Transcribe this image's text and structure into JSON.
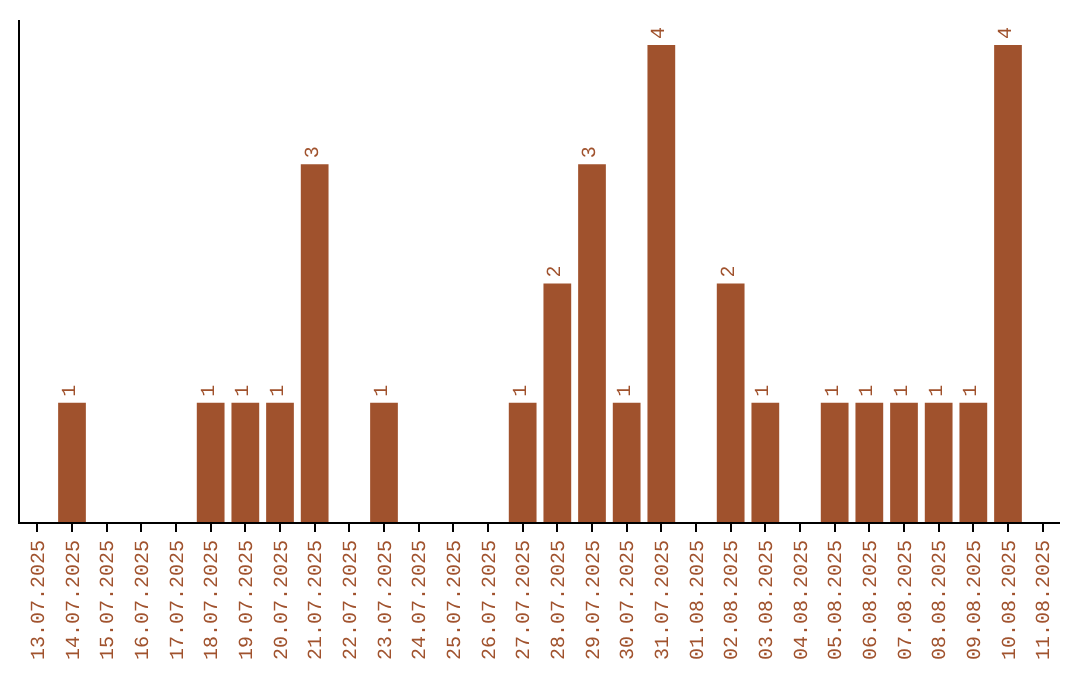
{
  "chart_data": {
    "type": "bar",
    "categories": [
      "13.07.2025",
      "14.07.2025",
      "15.07.2025",
      "16.07.2025",
      "17.07.2025",
      "18.07.2025",
      "19.07.2025",
      "20.07.2025",
      "21.07.2025",
      "22.07.2025",
      "23.07.2025",
      "24.07.2025",
      "25.07.2025",
      "26.07.2025",
      "27.07.2025",
      "28.07.2025",
      "29.07.2025",
      "30.07.2025",
      "31.07.2025",
      "01.08.2025",
      "02.08.2025",
      "03.08.2025",
      "04.08.2025",
      "05.08.2025",
      "06.08.2025",
      "07.08.2025",
      "08.08.2025",
      "09.08.2025",
      "10.08.2025",
      "11.08.2025"
    ],
    "values": [
      0,
      1,
      0,
      0,
      0,
      1,
      1,
      1,
      3,
      0,
      1,
      0,
      0,
      0,
      1,
      2,
      3,
      1,
      4,
      0,
      2,
      1,
      0,
      1,
      1,
      1,
      1,
      1,
      4,
      0
    ],
    "value_labels": [
      null,
      "1",
      null,
      null,
      null,
      "1",
      "1",
      "1",
      "3",
      null,
      "1",
      null,
      null,
      null,
      "1",
      "2",
      "3",
      "1",
      "4",
      null,
      "2",
      "1",
      null,
      "1",
      "1",
      "1",
      "1",
      "1",
      "4",
      null
    ],
    "color": "#a0522d",
    "tick_labels": "x"
  }
}
